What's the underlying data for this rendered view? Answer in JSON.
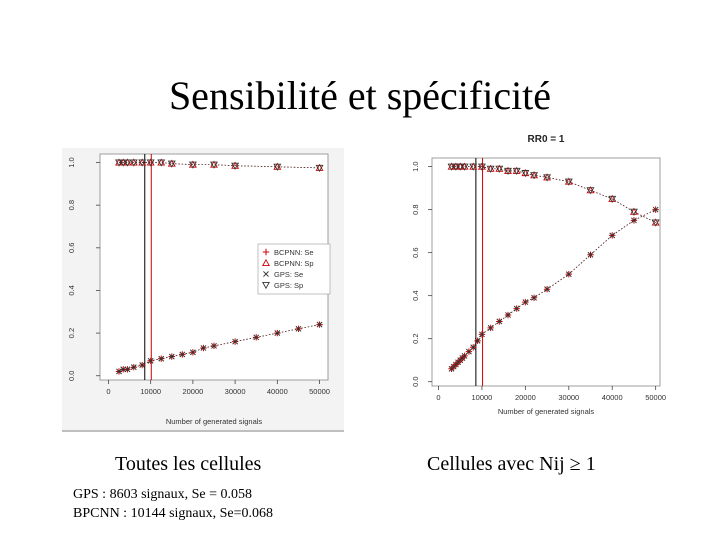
{
  "slide": {
    "title": "Sensibilité et spécificité",
    "caption_left": "Toutes les cellules",
    "caption_right": "Cellules avec Nij ≥ 1",
    "note_gps": "GPS : 8603 signaux, Se = 0.058",
    "note_bpcnn": "BPCNN : 10144 signaux, Se=0.068"
  },
  "chart_data": [
    {
      "type": "scatter",
      "title": "",
      "xlabel": "Number of generated signals",
      "ylabel": "",
      "xlim": [
        -2000,
        52000
      ],
      "ylim": [
        -0.02,
        1.04
      ],
      "xticks": [
        0,
        10000,
        20000,
        30000,
        40000,
        50000
      ],
      "xtick_labels": [
        "0",
        "10000",
        "20000",
        "30000",
        "40000",
        "50000"
      ],
      "yticks": [
        0.0,
        0.2,
        0.4,
        0.6,
        0.8,
        1.0
      ],
      "ytick_labels": [
        "0.0",
        "0.2",
        "0.4",
        "0.6",
        "0.8",
        "1.0"
      ],
      "vlines": [
        {
          "x": 8603,
          "color": "#000000"
        },
        {
          "x": 10144,
          "color": "#cc0000"
        }
      ],
      "legend": {
        "position": "middle-right",
        "entries": [
          "BCPNN: Se",
          "BCPNN: Sp",
          "GPS: Se",
          "GPS: Sp"
        ]
      },
      "colors": {
        "bcpnn": "#cc0000",
        "gps": "#333333"
      },
      "series": [
        {
          "name": "BCPNN: Se",
          "marker": "plus",
          "color": "#cc0000",
          "x": [
            2500,
            3500,
            4500,
            6000,
            8000,
            10000,
            12500,
            15000,
            17500,
            20000,
            22500,
            25000,
            30000,
            35000,
            40000,
            45000,
            50000
          ],
          "y": [
            0.02,
            0.03,
            0.03,
            0.04,
            0.05,
            0.07,
            0.08,
            0.09,
            0.1,
            0.11,
            0.13,
            0.14,
            0.16,
            0.18,
            0.2,
            0.22,
            0.24
          ]
        },
        {
          "name": "BCPNN: Sp",
          "marker": "triangle-up",
          "color": "#cc0000",
          "x": [
            2500,
            3500,
            4500,
            6000,
            8000,
            10000,
            12500,
            15000,
            20000,
            25000,
            30000,
            40000,
            50000
          ],
          "y": [
            1.0,
            1.0,
            1.0,
            1.0,
            1.0,
            1.0,
            1.0,
            0.995,
            0.99,
            0.99,
            0.985,
            0.98,
            0.975
          ]
        },
        {
          "name": "GPS: Se",
          "marker": "cross",
          "color": "#333333",
          "x": [
            2500,
            3500,
            4500,
            6000,
            8000,
            10000,
            12500,
            15000,
            17500,
            20000,
            22500,
            25000,
            30000,
            35000,
            40000,
            45000,
            50000
          ],
          "y": [
            0.02,
            0.03,
            0.03,
            0.04,
            0.05,
            0.07,
            0.08,
            0.09,
            0.1,
            0.11,
            0.13,
            0.14,
            0.16,
            0.18,
            0.2,
            0.22,
            0.24
          ]
        },
        {
          "name": "GPS: Sp",
          "marker": "triangle-down",
          "color": "#333333",
          "x": [
            2500,
            3500,
            4500,
            6000,
            8000,
            10000,
            12500,
            15000,
            20000,
            25000,
            30000,
            40000,
            50000
          ],
          "y": [
            1.0,
            1.0,
            1.0,
            1.0,
            1.0,
            1.0,
            1.0,
            0.995,
            0.99,
            0.99,
            0.985,
            0.98,
            0.975
          ]
        }
      ]
    },
    {
      "type": "scatter",
      "title": "RR0 = 1",
      "xlabel": "Number of generated signals",
      "ylabel": "",
      "xlim": [
        -1500,
        51000
      ],
      "ylim": [
        -0.02,
        1.04
      ],
      "xticks": [
        0,
        10000,
        20000,
        30000,
        40000,
        50000
      ],
      "xtick_labels": [
        "0",
        "10000",
        "20000",
        "30000",
        "40000",
        "50000"
      ],
      "yticks": [
        0.0,
        0.2,
        0.4,
        0.6,
        0.8,
        1.0
      ],
      "ytick_labels": [
        "0.0",
        "0.2",
        "0.4",
        "0.6",
        "0.8",
        "1.0"
      ],
      "vlines": [
        {
          "x": 8603,
          "color": "#000000"
        },
        {
          "x": 10144,
          "color": "#cc0000"
        }
      ],
      "colors": {
        "bcpnn": "#cc0000",
        "gps": "#333333"
      },
      "series": [
        {
          "name": "BCPNN: Se",
          "marker": "plus",
          "color": "#cc0000",
          "x": [
            3000,
            3500,
            4000,
            4500,
            5000,
            5500,
            6000,
            7000,
            8000,
            9000,
            10000,
            12000,
            14000,
            16000,
            18000,
            20000,
            22000,
            25000,
            30000,
            35000,
            40000,
            45000,
            50000
          ],
          "y": [
            0.06,
            0.07,
            0.08,
            0.09,
            0.1,
            0.11,
            0.12,
            0.14,
            0.16,
            0.19,
            0.22,
            0.25,
            0.28,
            0.31,
            0.34,
            0.37,
            0.39,
            0.43,
            0.5,
            0.59,
            0.68,
            0.75,
            0.8
          ]
        },
        {
          "name": "BCPNN: Sp",
          "marker": "triangle-up",
          "color": "#cc0000",
          "x": [
            3000,
            4000,
            5000,
            6000,
            8000,
            10000,
            12000,
            14000,
            16000,
            18000,
            20000,
            22000,
            25000,
            30000,
            35000,
            40000,
            45000,
            50000
          ],
          "y": [
            1.0,
            1.0,
            1.0,
            1.0,
            1.0,
            1.0,
            0.99,
            0.99,
            0.98,
            0.98,
            0.97,
            0.96,
            0.95,
            0.93,
            0.89,
            0.85,
            0.79,
            0.74
          ]
        },
        {
          "name": "GPS: Se",
          "marker": "cross",
          "color": "#333333",
          "x": [
            3000,
            3500,
            4000,
            4500,
            5000,
            5500,
            6000,
            7000,
            8000,
            9000,
            10000,
            12000,
            14000,
            16000,
            18000,
            20000,
            22000,
            25000,
            30000,
            35000,
            40000,
            45000,
            50000
          ],
          "y": [
            0.06,
            0.07,
            0.08,
            0.09,
            0.1,
            0.11,
            0.12,
            0.14,
            0.16,
            0.19,
            0.22,
            0.25,
            0.28,
            0.31,
            0.34,
            0.37,
            0.39,
            0.43,
            0.5,
            0.59,
            0.68,
            0.75,
            0.8
          ]
        },
        {
          "name": "GPS: Sp",
          "marker": "triangle-down",
          "color": "#333333",
          "x": [
            3000,
            4000,
            5000,
            6000,
            8000,
            10000,
            12000,
            14000,
            16000,
            18000,
            20000,
            22000,
            25000,
            30000,
            35000,
            40000,
            45000,
            50000
          ],
          "y": [
            1.0,
            1.0,
            1.0,
            1.0,
            1.0,
            1.0,
            0.99,
            0.99,
            0.98,
            0.98,
            0.97,
            0.96,
            0.95,
            0.93,
            0.89,
            0.85,
            0.79,
            0.74
          ]
        }
      ]
    }
  ]
}
